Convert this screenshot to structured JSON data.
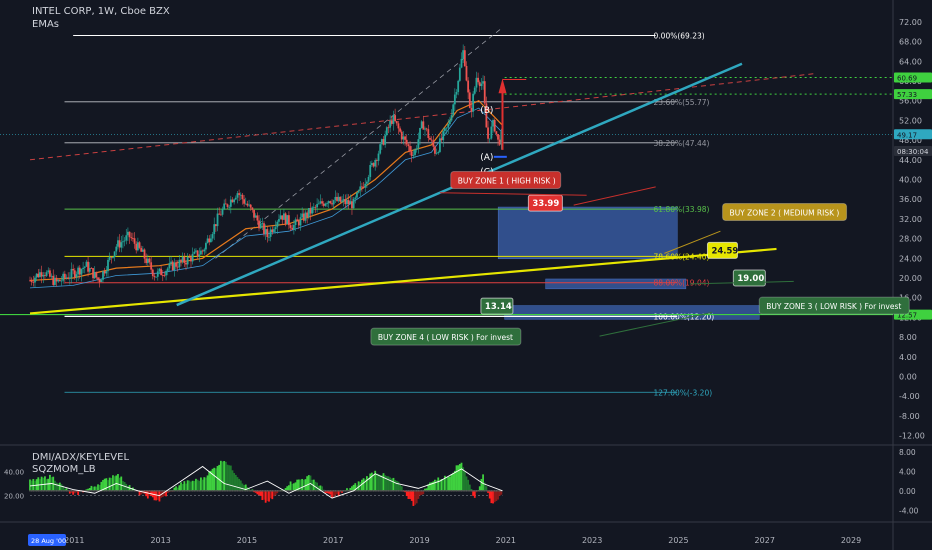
{
  "header": {
    "title": "INTEL CORP, 1W, Cboe BZX",
    "emas_label": "EMAs"
  },
  "indicators": {
    "dmi_label": "DMI/ADX/KEYLEVEL",
    "sqz_label": "SQZMOM_LB"
  },
  "colors": {
    "background": "#131722",
    "candles_up": "#26a69a",
    "candles_down": "#ef5350",
    "fib_line": "#9598a1",
    "channel_line": "#2fa8c0",
    "support_line": "#e6e600",
    "green_dotted": "#3fd13f",
    "buy_zone_box": "#3a5ea8",
    "zone1": "#c8302c",
    "zone2": "#b8941c",
    "zone3": "#2f6f3c",
    "zone4": "#2f6f3c"
  },
  "chart_data": {
    "type": "candlestick",
    "symbol": "INTEL CORP",
    "interval": "1W",
    "exchange": "Cboe BZX",
    "x_ticks": [
      "2011",
      "2013",
      "2015",
      "2017",
      "2019",
      "2021",
      "2023",
      "2025",
      "2027",
      "2029"
    ],
    "x_range": [
      2010.0,
      2030.0
    ],
    "date_badge": "28 Aug '00",
    "y_ticks": [
      "72.00",
      "68.00",
      "64.00",
      "60.00",
      "56.00",
      "52.00",
      "48.00",
      "44.00",
      "40.00",
      "36.00",
      "32.00",
      "28.00",
      "24.00",
      "20.00",
      "16.00",
      "12.00",
      "8.00",
      "4.00",
      "0.00",
      "-4.00",
      "-8.00",
      "-12.00"
    ],
    "y_range": [
      -13.5,
      74.0
    ],
    "price_series": [
      [
        2010.0,
        19.5
      ],
      [
        2010.3,
        21.5
      ],
      [
        2010.6,
        19.0
      ],
      [
        2011.0,
        21.0
      ],
      [
        2011.3,
        22.5
      ],
      [
        2011.6,
        19.5
      ],
      [
        2012.0,
        26.5
      ],
      [
        2012.3,
        28.5
      ],
      [
        2012.6,
        25.0
      ],
      [
        2012.9,
        20.5
      ],
      [
        2013.3,
        22.5
      ],
      [
        2013.6,
        23.5
      ],
      [
        2014.0,
        25.5
      ],
      [
        2014.4,
        33.0
      ],
      [
        2014.8,
        37.5
      ],
      [
        2015.1,
        34.0
      ],
      [
        2015.5,
        28.5
      ],
      [
        2015.8,
        33.0
      ],
      [
        2016.1,
        30.5
      ],
      [
        2016.5,
        33.5
      ],
      [
        2016.9,
        36.0
      ],
      [
        2017.2,
        35.5
      ],
      [
        2017.5,
        35.0
      ],
      [
        2017.8,
        40.5
      ],
      [
        2018.1,
        46.0
      ],
      [
        2018.4,
        52.5
      ],
      [
        2018.7,
        47.5
      ],
      [
        2018.9,
        45.0
      ],
      [
        2019.1,
        51.5
      ],
      [
        2019.4,
        45.5
      ],
      [
        2019.7,
        51.0
      ],
      [
        2019.9,
        59.5
      ],
      [
        2020.05,
        66.5
      ],
      [
        2020.2,
        53.0
      ],
      [
        2020.35,
        61.0
      ],
      [
        2020.5,
        59.0
      ],
      [
        2020.6,
        48.0
      ],
      [
        2020.75,
        51.5
      ],
      [
        2020.85,
        47.5
      ],
      [
        2020.95,
        49.17
      ]
    ],
    "ema_series": [
      [
        2010.0,
        19.5
      ],
      [
        2011.0,
        20.0
      ],
      [
        2012.0,
        22.0
      ],
      [
        2013.0,
        22.5
      ],
      [
        2014.0,
        24.0
      ],
      [
        2015.0,
        30.0
      ],
      [
        2016.0,
        31.0
      ],
      [
        2017.0,
        34.0
      ],
      [
        2018.0,
        40.0
      ],
      [
        2018.7,
        45.5
      ],
      [
        2019.3,
        47.0
      ],
      [
        2019.9,
        54.0
      ],
      [
        2020.4,
        56.0
      ],
      [
        2020.95,
        51.0
      ]
    ],
    "fib_levels": [
      {
        "label": "0.00%(69.23)",
        "value": 69.23
      },
      {
        "label": "23.60%(55.77)",
        "value": 55.77
      },
      {
        "label": "38.20%(47.44)",
        "value": 47.44
      },
      {
        "label": "61.80%(33.98)",
        "value": 33.98
      },
      {
        "label": "78.60%(24.40)",
        "value": 24.4
      },
      {
        "label": "88.00%(19.04)",
        "value": 19.04
      },
      {
        "label": "100.00%(12.20)",
        "value": 12.2
      },
      {
        "label": "127.00%(-3.20)",
        "value": -3.2
      }
    ],
    "price_badges": [
      {
        "text": "60.69",
        "value": 60.69
      },
      {
        "text": "57.33",
        "value": 57.33
      },
      {
        "text": "49.17",
        "value": 49.17
      },
      {
        "text": "08:30:04",
        "value": 47.2
      },
      {
        "text": "12.57",
        "value": 12.57
      }
    ],
    "buy_zones": [
      {
        "label": "BUY ZONE 1 ( HIGH RISK )",
        "target": "33.99",
        "target_value": 33.99
      },
      {
        "label": "BUY ZONE 2 ( MEDIUM RISK )",
        "target": "24.59",
        "target_value": 24.59
      },
      {
        "label": "BUY ZONE 3 ( LOW RISK ) For invest",
        "target": "19.00",
        "target_value": 19.0
      },
      {
        "label": "BUY ZONE 4 ( LOW RISK ) For invest",
        "target": "13.14",
        "target_value": 13.14
      }
    ],
    "wave_labels": [
      "(B)",
      "(A)",
      "(C)"
    ],
    "indicator_panel": {
      "left_ticks": [
        "40.00",
        "20.00"
      ],
      "left_range": [
        0,
        60
      ],
      "right_ticks": [
        "8.00",
        "4.00",
        "0.00",
        "-4.00"
      ],
      "right_range": [
        -6,
        9
      ],
      "adx_series": [
        [
          2010.0,
          28
        ],
        [
          2010.5,
          30
        ],
        [
          2011.0,
          25
        ],
        [
          2011.5,
          22
        ],
        [
          2012.0,
          30
        ],
        [
          2012.5,
          24
        ],
        [
          2013.0,
          20
        ],
        [
          2013.5,
          32
        ],
        [
          2014.0,
          44
        ],
        [
          2014.5,
          30
        ],
        [
          2015.0,
          25
        ],
        [
          2015.5,
          32
        ],
        [
          2016.0,
          22
        ],
        [
          2016.5,
          30
        ],
        [
          2017.0,
          18
        ],
        [
          2017.5,
          24
        ],
        [
          2018.0,
          38
        ],
        [
          2018.5,
          30
        ],
        [
          2019.0,
          26
        ],
        [
          2019.5,
          32
        ],
        [
          2020.0,
          42
        ],
        [
          2020.5,
          30
        ],
        [
          2020.95,
          24
        ]
      ],
      "momentum_series": [
        [
          2010.0,
          2.0
        ],
        [
          2010.5,
          3.0
        ],
        [
          2011.0,
          -1.0
        ],
        [
          2011.5,
          1.0
        ],
        [
          2012.0,
          3.5
        ],
        [
          2012.5,
          -0.5
        ],
        [
          2013.0,
          -2.0
        ],
        [
          2013.5,
          1.5
        ],
        [
          2014.0,
          2.5
        ],
        [
          2014.5,
          6.5
        ],
        [
          2015.0,
          1.0
        ],
        [
          2015.5,
          -2.5
        ],
        [
          2016.0,
          1.5
        ],
        [
          2016.5,
          3.0
        ],
        [
          2017.0,
          -1.5
        ],
        [
          2017.5,
          1.0
        ],
        [
          2018.0,
          4.0
        ],
        [
          2018.5,
          2.0
        ],
        [
          2018.9,
          -3.0
        ],
        [
          2019.3,
          2.0
        ],
        [
          2019.7,
          3.0
        ],
        [
          2020.0,
          6.0
        ],
        [
          2020.3,
          -1.5
        ],
        [
          2020.5,
          3.0
        ],
        [
          2020.7,
          -2.5
        ],
        [
          2020.95,
          -1.0
        ]
      ]
    }
  }
}
